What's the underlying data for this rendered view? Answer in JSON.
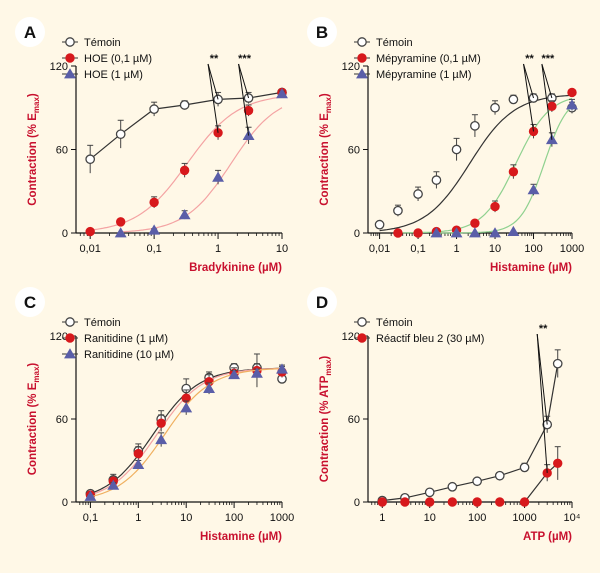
{
  "colors": {
    "background": "#fff8e7",
    "axis": "#111111",
    "title_red": "#c8102e",
    "control_marker": "#555555",
    "red_marker": "#d7191c",
    "blue_marker": "#5a5ea8",
    "red_fit": "#f4a3a3",
    "green_fit": "#8fd18f",
    "orange_fit": "#f0b060",
    "black_fit": "#333333"
  },
  "chart_data": [
    {
      "id": "A",
      "type": "line",
      "panel_label": "A",
      "xlabel": "Bradykinine (µM)",
      "ylabel": "Contraction (% Emax)",
      "ylabel_parts": [
        "Contraction (% E",
        "max",
        ")"
      ],
      "xscale": "log",
      "xlim": [
        0.006,
        10
      ],
      "ylim": [
        0,
        120
      ],
      "xticks": [
        0.01,
        0.1,
        1,
        10
      ],
      "xtick_labels": [
        "0,01",
        "0,1",
        "1",
        "10"
      ],
      "yticks": [
        0,
        60,
        120
      ],
      "ytick_labels": [
        "0",
        "60",
        "120"
      ],
      "legend_position": "top-left",
      "series": [
        {
          "name": "Témoin",
          "marker": "open-circle",
          "x": [
            0.01,
            0.03,
            0.1,
            0.3,
            1,
            3,
            10
          ],
          "y": [
            53,
            71,
            89,
            92,
            96,
            97,
            101
          ],
          "err": [
            10,
            10,
            5,
            3,
            5,
            4,
            2
          ],
          "fit": "connect"
        },
        {
          "name": "HOE (0,1 µM)",
          "marker": "filled-circle",
          "x": [
            0.01,
            0.03,
            0.1,
            0.3,
            1,
            3,
            10
          ],
          "y": [
            1,
            8,
            22,
            45,
            72,
            88,
            101
          ],
          "err": [
            0,
            2,
            4,
            5,
            5,
            4,
            2
          ],
          "fit": "sigmoid",
          "ec50": 0.33,
          "hill": 1.1
        },
        {
          "name": "HOE (1 µM)",
          "marker": "triangle",
          "x": [
            0.03,
            0.1,
            0.3,
            1,
            3,
            10
          ],
          "y": [
            0,
            2,
            13,
            40,
            70,
            100
          ],
          "err": [
            0,
            1,
            3,
            5,
            6,
            2
          ],
          "fit": "sigmoid",
          "ec50": 1.6,
          "hill": 1.2
        }
      ],
      "significance": [
        {
          "label": "**",
          "x_at": 1,
          "from_y": 96,
          "to_y": 72
        },
        {
          "label": "***",
          "x_at": 3,
          "from_y": 97,
          "to_y": 70
        }
      ]
    },
    {
      "id": "B",
      "type": "line",
      "panel_label": "B",
      "xlabel": "Histamine (µM)",
      "ylabel": "Contraction (% Emax)",
      "ylabel_parts": [
        "Contraction (% E",
        "max",
        ")"
      ],
      "xscale": "log",
      "xlim": [
        0.005,
        1000
      ],
      "ylim": [
        0,
        120
      ],
      "xticks": [
        0.01,
        0.1,
        1,
        10,
        100,
        1000
      ],
      "xtick_labels": [
        "0,01",
        "0,1",
        "1",
        "10",
        "100",
        "1000"
      ],
      "yticks": [
        0,
        60,
        120
      ],
      "ytick_labels": [
        "0",
        "60",
        "120"
      ],
      "legend_position": "top-left",
      "series": [
        {
          "name": "Témoin",
          "marker": "open-circle",
          "x": [
            0.01,
            0.03,
            0.1,
            0.3,
            1,
            3,
            10,
            30,
            100,
            300,
            1000
          ],
          "y": [
            6,
            16,
            28,
            38,
            60,
            77,
            90,
            96,
            97,
            97,
            90
          ],
          "err": [
            2,
            4,
            5,
            6,
            8,
            8,
            5,
            3,
            3,
            3,
            4
          ],
          "fit": "sigmoid",
          "ec50": 2.2,
          "hill": 0.75
        },
        {
          "name": "Mépyramine (0,1 µM)",
          "marker": "filled-circle",
          "x": [
            0.03,
            0.1,
            0.3,
            1,
            3,
            10,
            30,
            100,
            300,
            1000
          ],
          "y": [
            0,
            0,
            1,
            2,
            7,
            19,
            44,
            73,
            91,
            101
          ],
          "err": [
            0,
            0,
            0,
            1,
            2,
            4,
            5,
            5,
            4,
            2
          ],
          "fit": "sigmoid",
          "ec50": 35,
          "hill": 1.0
        },
        {
          "name": "Mépyramine (1 µM)",
          "marker": "triangle",
          "x": [
            0.3,
            1,
            3,
            10,
            30,
            100,
            300,
            1000
          ],
          "y": [
            0,
            0,
            0,
            0,
            1,
            31,
            67,
            92
          ],
          "err": [
            0,
            0,
            0,
            0,
            0,
            4,
            5,
            4
          ],
          "fit": "sigmoid",
          "ec50": 190,
          "hill": 1.4
        }
      ],
      "significance": [
        {
          "label": "**",
          "x_at": 100,
          "from_y": 97,
          "to_y": 73
        },
        {
          "label": "***",
          "x_at": 300,
          "from_y": 97,
          "to_y": 67
        }
      ]
    },
    {
      "id": "C",
      "type": "line",
      "panel_label": "C",
      "xlabel": "Histamine (µM)",
      "ylabel": "Contraction (% Emax)",
      "ylabel_parts": [
        "Contraction (% E",
        "max",
        ")"
      ],
      "xscale": "log",
      "xlim": [
        0.05,
        1000
      ],
      "ylim": [
        0,
        120
      ],
      "xticks": [
        0.1,
        1,
        10,
        100,
        1000
      ],
      "xtick_labels": [
        "0,1",
        "1",
        "10",
        "100",
        "1000"
      ],
      "yticks": [
        0,
        60,
        120
      ],
      "ytick_labels": [
        "0",
        "60",
        "120"
      ],
      "legend_position": "top-left",
      "series": [
        {
          "name": "Témoin",
          "marker": "open-circle",
          "x": [
            0.1,
            0.3,
            1,
            3,
            10,
            30,
            100,
            300,
            1000
          ],
          "y": [
            6,
            16,
            37,
            60,
            82,
            90,
            97,
            97,
            89
          ],
          "err": [
            2,
            4,
            5,
            6,
            7,
            4,
            3,
            3,
            3
          ],
          "fit": "sigmoid",
          "ec50": 2.0,
          "hill": 0.9
        },
        {
          "name": "Ranitidine (1 µM)",
          "marker": "filled-circle",
          "x": [
            0.1,
            0.3,
            1,
            3,
            10,
            30,
            100,
            300,
            1000
          ],
          "y": [
            5,
            15,
            35,
            57,
            75,
            87,
            93,
            95,
            94
          ],
          "err": [
            2,
            3,
            5,
            6,
            6,
            5,
            4,
            12,
            4
          ],
          "fit": "sigmoid",
          "ec50": 2.4,
          "hill": 0.9
        },
        {
          "name": "Ranitidine (10 µM)",
          "marker": "triangle",
          "x": [
            0.1,
            0.3,
            1,
            3,
            10,
            30,
            100,
            300,
            1000
          ],
          "y": [
            4,
            12,
            27,
            45,
            68,
            82,
            92,
            93,
            96
          ],
          "err": [
            1,
            2,
            3,
            5,
            5,
            4,
            3,
            3,
            3
          ],
          "fit": "sigmoid",
          "ec50": 3.5,
          "hill": 0.9
        }
      ],
      "significance": []
    },
    {
      "id": "D",
      "type": "line",
      "panel_label": "D",
      "xlabel": "ATP (µM)",
      "ylabel": "Contraction (% ATPmax)",
      "ylabel_parts": [
        "Contraction (% ATP",
        "max",
        ")"
      ],
      "xscale": "log",
      "xlim": [
        0.5,
        10000
      ],
      "ylim": [
        0,
        120
      ],
      "xticks": [
        1,
        10,
        100,
        1000,
        10000
      ],
      "xtick_labels": [
        "1",
        "10",
        "100",
        "1000",
        "10⁴"
      ],
      "yticks": [
        0,
        60,
        120
      ],
      "ytick_labels": [
        "0",
        "60",
        "120"
      ],
      "legend_position": "top-left",
      "series": [
        {
          "name": "Témoin",
          "marker": "open-circle",
          "x": [
            1,
            3,
            10,
            30,
            100,
            300,
            1000,
            3000,
            5000
          ],
          "y": [
            1,
            3,
            7,
            11,
            15,
            19,
            25,
            56,
            100
          ],
          "err": [
            0,
            1,
            1,
            1,
            2,
            2,
            3,
            6,
            10
          ],
          "fit": "connect"
        },
        {
          "name": "Réactif bleu 2 (30 µM)",
          "marker": "filled-circle",
          "x": [
            1,
            3,
            10,
            30,
            100,
            300,
            1000,
            3000,
            5000
          ],
          "y": [
            0,
            0,
            0,
            0,
            0,
            0,
            0,
            21,
            28
          ],
          "err": [
            0,
            0,
            0,
            0,
            0,
            0,
            0,
            6,
            12
          ],
          "fit": "connect"
        }
      ],
      "significance": [
        {
          "label": "**",
          "x_at": 3000,
          "from_y": 56,
          "to_y": 21
        }
      ]
    }
  ]
}
